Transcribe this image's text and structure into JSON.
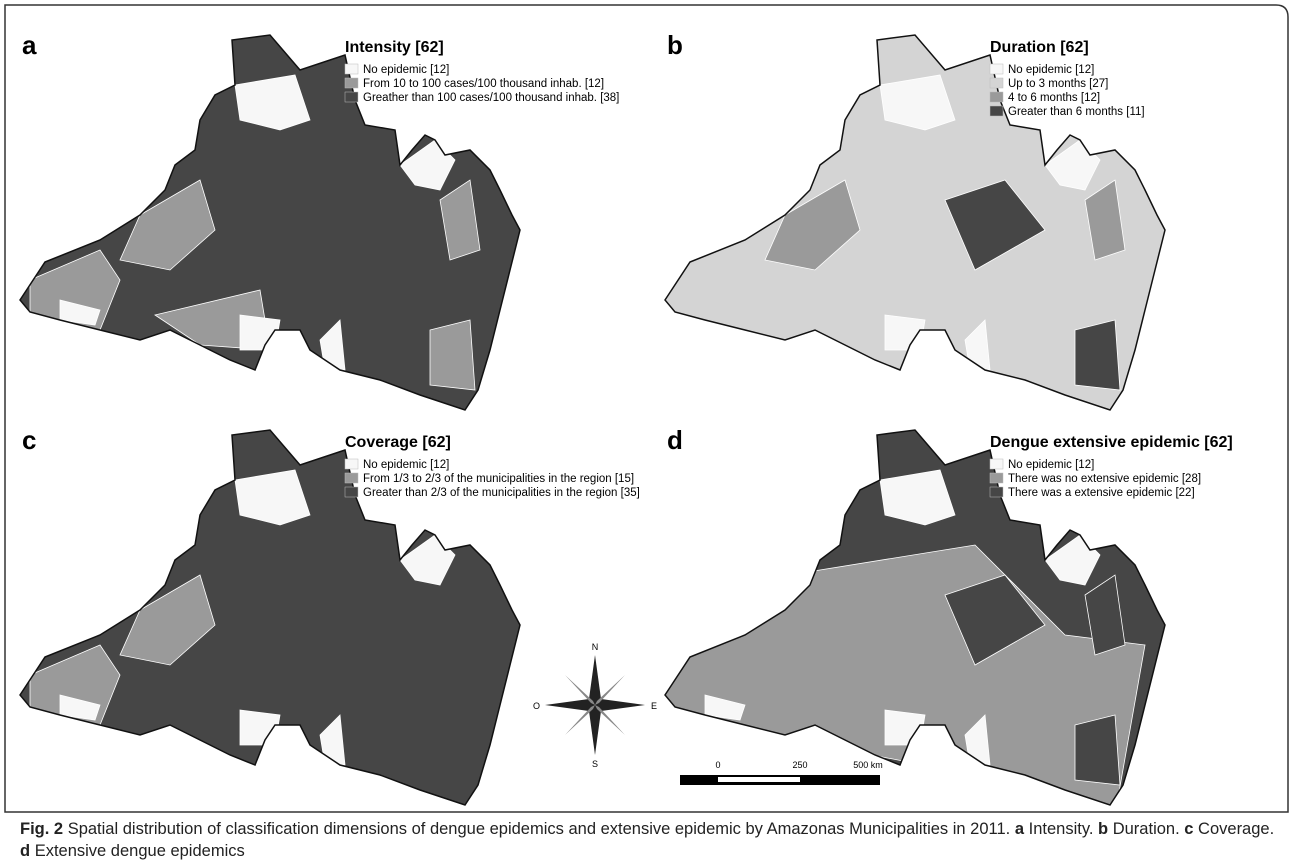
{
  "panels": [
    {
      "letter": "a",
      "title": "Intensity [62]",
      "legend": [
        {
          "label": "No epidemic [12]",
          "color": "#f7f7f7"
        },
        {
          "label": "From 10 to 100 cases/100 thousand inhab. [12]",
          "color": "#9a9a9a"
        },
        {
          "label": "Greather than 100 cases/100 thousand inhab. [38]",
          "color": "#464646"
        }
      ]
    },
    {
      "letter": "b",
      "title": "Duration [62]",
      "legend": [
        {
          "label": "No epidemic [12]",
          "color": "#f7f7f7"
        },
        {
          "label": "Up to 3 months [27]",
          "color": "#d4d4d4"
        },
        {
          "label": "4 to 6 months [12]",
          "color": "#9a9a9a"
        },
        {
          "label": "Greater than 6 months [11]",
          "color": "#464646"
        }
      ]
    },
    {
      "letter": "c",
      "title": "Coverage [62]",
      "legend": [
        {
          "label": "No epidemic [12]",
          "color": "#f7f7f7"
        },
        {
          "label": "From 1/3 to 2/3 of the municipalities in the region [15]",
          "color": "#9a9a9a"
        },
        {
          "label": "Greater than 2/3 of the municipalities in the region [35]",
          "color": "#464646"
        }
      ]
    },
    {
      "letter": "d",
      "title": "Dengue extensive epidemic [62]",
      "legend": [
        {
          "label": "No epidemic [12]",
          "color": "#f7f7f7"
        },
        {
          "label": "There was no extensive epidemic [28]",
          "color": "#9a9a9a"
        },
        {
          "label": "There was a extensive epidemic [22]",
          "color": "#464646"
        }
      ]
    }
  ],
  "compass": {
    "north": "N",
    "south": "S",
    "east": "E",
    "west": "O"
  },
  "scale_bar": [
    "0",
    "250",
    "500 km"
  ],
  "caption": {
    "label": "Fig. 2",
    "text": "Spatial distribution of classification dimensions of dengue epidemics and extensive epidemic by Amazonas Municipalities in 2011.",
    "parts": [
      {
        "letter": "a",
        "text": "Intensity."
      },
      {
        "letter": "b",
        "text": "Duration."
      },
      {
        "letter": "c",
        "text": "Coverage."
      },
      {
        "letter": "d",
        "text": "Extensive dengue epidemics"
      }
    ]
  }
}
